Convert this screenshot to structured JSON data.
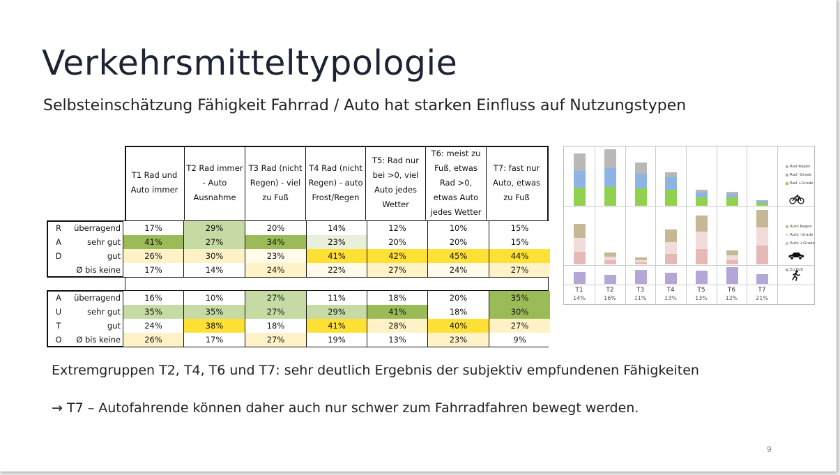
{
  "title": "Verkehrsmitteltypologie",
  "subtitle": "Selbsteinschätzung Fähigkeit Fahrrad / Auto hat starken Einfluss auf Nutzungstypen",
  "table": {
    "headers": [
      "T1 Rad und Auto immer",
      "T2 Rad immer - Auto Ausnahme",
      "T3 Rad (nicht Regen) - viel zu Fuß",
      "T4 Rad (nicht Regen) - auto Frost/Regen",
      "T5: Rad nur bei >0, viel Auto jedes Wetter",
      "T6: meist zu Fuß, etwas Rad >0, etwas Auto jedes Wetter",
      "T7: fast nur Auto, etwas zu Fuß"
    ],
    "rad": {
      "letters": [
        "R",
        "A",
        "D",
        ""
      ],
      "labels": [
        "überragend",
        "sehr gut",
        "gut",
        "Ø  bis keine"
      ],
      "rows": [
        [
          "17%",
          "29%",
          "20%",
          "14%",
          "12%",
          "10%",
          "15%"
        ],
        [
          "41%",
          "27%",
          "34%",
          "23%",
          "20%",
          "20%",
          "15%"
        ],
        [
          "26%",
          "30%",
          "23%",
          "41%",
          "42%",
          "45%",
          "44%"
        ],
        [
          "17%",
          "14%",
          "24%",
          "22%",
          "27%",
          "24%",
          "27%"
        ]
      ]
    },
    "auto": {
      "letters": [
        "A",
        "U",
        "T",
        "O"
      ],
      "labels": [
        "überragend",
        "sehr gut",
        "gut",
        "Ø  bis keine"
      ],
      "rows": [
        [
          "16%",
          "10%",
          "27%",
          "11%",
          "18%",
          "20%",
          "35%"
        ],
        [
          "35%",
          "35%",
          "27%",
          "29%",
          "41%",
          "18%",
          "30%"
        ],
        [
          "24%",
          "38%",
          "18%",
          "41%",
          "28%",
          "40%",
          "27%"
        ],
        [
          "26%",
          "17%",
          "27%",
          "19%",
          "13%",
          "23%",
          "9%"
        ]
      ]
    }
  },
  "colors": {
    "rad": [
      [
        "#ffffff",
        "#c5dba3",
        "#ffffff",
        "#ffffff",
        "#ffffff",
        "#ffffff",
        "#ffffff"
      ],
      [
        "#9bbb59",
        "#c5dba3",
        "#9bbb59",
        "#e8f0dc",
        "#ffffff",
        "#ffffff",
        "#ffffff"
      ],
      [
        "#fff2c7",
        "#fff2c7",
        "#fffbeb",
        "#ffe035",
        "#ffe035",
        "#ffe035",
        "#ffe035"
      ],
      [
        "#ffffff",
        "#ffffff",
        "#fff2c7",
        "#fffbeb",
        "#fff2c7",
        "#fffbeb",
        "#fff2c7"
      ]
    ],
    "auto": [
      [
        "#ffffff",
        "#ffffff",
        "#c5dba3",
        "#ffffff",
        "#ffffff",
        "#ffffff",
        "#9bbb59"
      ],
      [
        "#c5dba3",
        "#c5dba3",
        "#c5dba3",
        "#c5dba3",
        "#9bbb59",
        "#ffffff",
        "#9bbb59"
      ],
      [
        "#ffffff",
        "#ffe035",
        "#ffffff",
        "#ffe035",
        "#fff2c7",
        "#ffe035",
        "#fff2c7"
      ],
      [
        "#fff2c7",
        "#ffffff",
        "#fff2c7",
        "#ffffff",
        "#ffffff",
        "#fff2c7",
        "#ffffff"
      ]
    ]
  },
  "note1": "Extremgruppen T2, T4, T6 und T7: sehr deutlich Ergebnis der subjektiv empfundenen Fähigkeiten",
  "note2": "→ T7 – Autofahrende können daher auch nur schwer zum Fahrradfahren bewegt werden.",
  "page_number": "9",
  "chart_data": {
    "type": "bar",
    "categories": [
      "T1",
      "T2",
      "T3",
      "T4",
      "T5",
      "T6",
      "T7"
    ],
    "shares": [
      "14%",
      "16%",
      "11%",
      "13%",
      "13%",
      "12%",
      "21%"
    ],
    "panels": [
      {
        "legend": [
          "Rad Regen",
          "Rad -Grade",
          "Rad +Grade"
        ],
        "colors": [
          "#b8b8b8",
          "#8db4e2",
          "#92d050"
        ],
        "icon": "bicycle-icon",
        "stacks": [
          [
            25,
            24,
            26
          ],
          [
            27,
            27,
            27
          ],
          [
            16,
            21,
            25
          ],
          [
            7,
            18,
            23
          ],
          [
            4,
            7,
            12
          ],
          [
            3,
            5,
            12
          ],
          [
            1,
            3,
            4
          ]
        ]
      },
      {
        "legend": [
          "Auto Regen",
          "Auto -Grade",
          "Auto +Grade"
        ],
        "colors": [
          "#c4b896",
          "#f2dcdb",
          "#e6b9b8"
        ],
        "icon": "car-icon",
        "stacks": [
          [
            20,
            20,
            18
          ],
          [
            6,
            5,
            6
          ],
          [
            4,
            3,
            3
          ],
          [
            18,
            17,
            15
          ],
          [
            23,
            25,
            22
          ],
          [
            7,
            7,
            6
          ],
          [
            25,
            26,
            27
          ]
        ]
      },
      {
        "legend": [
          "Zu Fuß"
        ],
        "colors": [
          "#b4a7d6"
        ],
        "icon": "walking-icon",
        "stacks": [
          [
            17
          ],
          [
            13
          ],
          [
            20
          ],
          [
            16
          ],
          [
            19
          ],
          [
            24
          ],
          [
            14
          ]
        ]
      }
    ]
  }
}
